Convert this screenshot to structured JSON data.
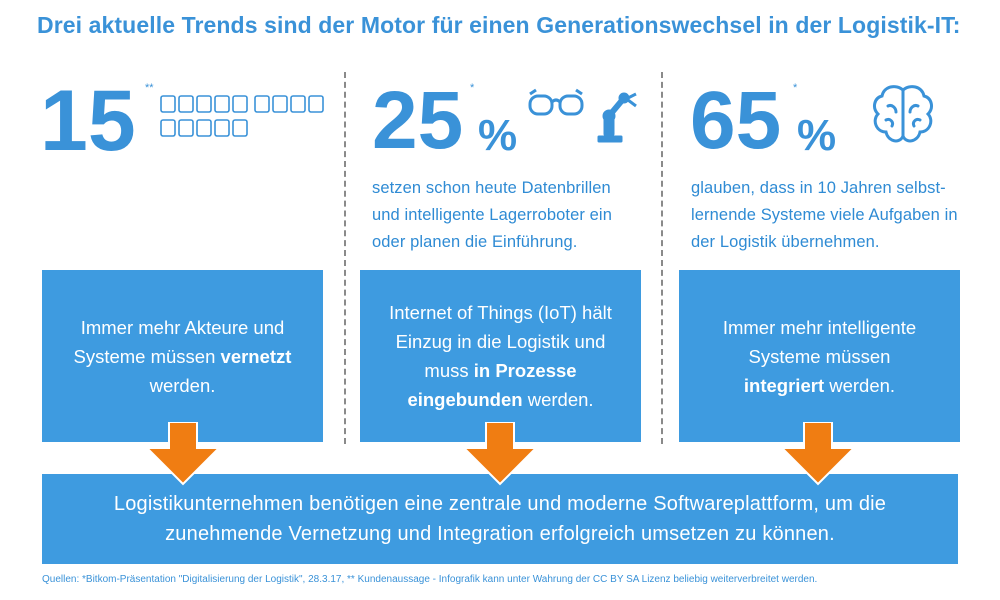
{
  "title": "Drei aktuelle Trends sind der Motor für einen Generationswechsel in der Logistik-IT:",
  "col1": {
    "number": "15",
    "star": "**",
    "icon_name": "device-icons-row",
    "box": {
      "pre": "Immer mehr Akteure und Systeme müssen ",
      "bold": "vernetzt",
      "post": " werden."
    }
  },
  "col2": {
    "number": "25",
    "percent": "%",
    "star": "*",
    "icons": [
      "glasses-icon",
      "robot-arm-icon"
    ],
    "subtext": "setzen schon heute Datenbrillen und intelligente Lagerroboter ein oder planen die Einführung.",
    "box": {
      "pre": "Internet of Things (IoT) hält Einzug in die Logistik und muss ",
      "bold1": "in Prozesse eingebunden",
      "post": " werden."
    }
  },
  "col3": {
    "number": "65",
    "percent": "%",
    "star": "*",
    "icons": [
      "brain-icon"
    ],
    "subtext": "glauben, dass in 10 Jahren selbst-lernende Systeme viele Aufgaben in der Logistik übernehmen.",
    "box": {
      "pre": "Immer mehr intelligente Systeme müssen ",
      "bold": "integriert",
      "post": " werden."
    }
  },
  "bottom_text": "Logistikunternehmen benötigen eine zentrale und moderne Softwareplattform, um die zunehmende Vernetzung und Integration erfolgreich umsetzen zu können.",
  "footer": "Quellen: *Bitkom-Präsentation \"Digitalisierung der Logistik\", 28.3.17, ** Kundenaussage  - Infografik kann unter Wahrung der CC BY SA Lizenz beliebig weiterverbreitet werden.",
  "colors": {
    "blue": "#3a92d8",
    "box": "#3e9be0",
    "arrow": "#f07d12",
    "divider": "#8a8a8a"
  }
}
